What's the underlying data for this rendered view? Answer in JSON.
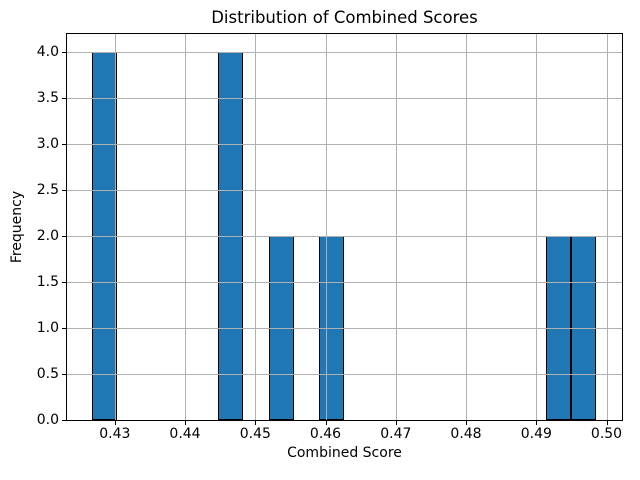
{
  "figure": {
    "background_color": "#ffffff"
  },
  "chart_data": {
    "type": "bar",
    "subtype": "histogram",
    "title": "Distribution of Combined Scores",
    "xlabel": "Combined Score",
    "ylabel": "Frequency",
    "bin_edges": [
      0.42679,
      0.43038,
      0.43397,
      0.43756,
      0.44115,
      0.44474,
      0.44832,
      0.45191,
      0.4555,
      0.45909,
      0.46268,
      0.46627,
      0.46986,
      0.47345,
      0.47704,
      0.48063,
      0.48421,
      0.4878,
      0.49139,
      0.49498,
      0.49857
    ],
    "counts": [
      4,
      0,
      0,
      0,
      0,
      4,
      0,
      2,
      0,
      2,
      0,
      0,
      0,
      0,
      0,
      0,
      0,
      0,
      2,
      2
    ],
    "total_observations": 16,
    "xlim": [
      0.4232,
      0.5022
    ],
    "ylim": [
      0,
      4.2
    ],
    "xticks": [
      0.43,
      0.44,
      0.45,
      0.46,
      0.47,
      0.48,
      0.49,
      0.5
    ],
    "xtick_labels": [
      "0.43",
      "0.44",
      "0.45",
      "0.46",
      "0.47",
      "0.48",
      "0.49",
      "0.50"
    ],
    "yticks": [
      0.0,
      0.5,
      1.0,
      1.5,
      2.0,
      2.5,
      3.0,
      3.5,
      4.0
    ],
    "ytick_labels": [
      "0.0",
      "0.5",
      "1.0",
      "1.5",
      "2.0",
      "2.5",
      "3.0",
      "3.5",
      "4.0"
    ],
    "grid": true,
    "grid_above_bars": true,
    "legend": false,
    "colors": {
      "bar_fill": "#1f77b4",
      "bar_edge": "#000000",
      "grid": "#b0b0b0",
      "spine": "#000000",
      "text": "#000000"
    }
  }
}
